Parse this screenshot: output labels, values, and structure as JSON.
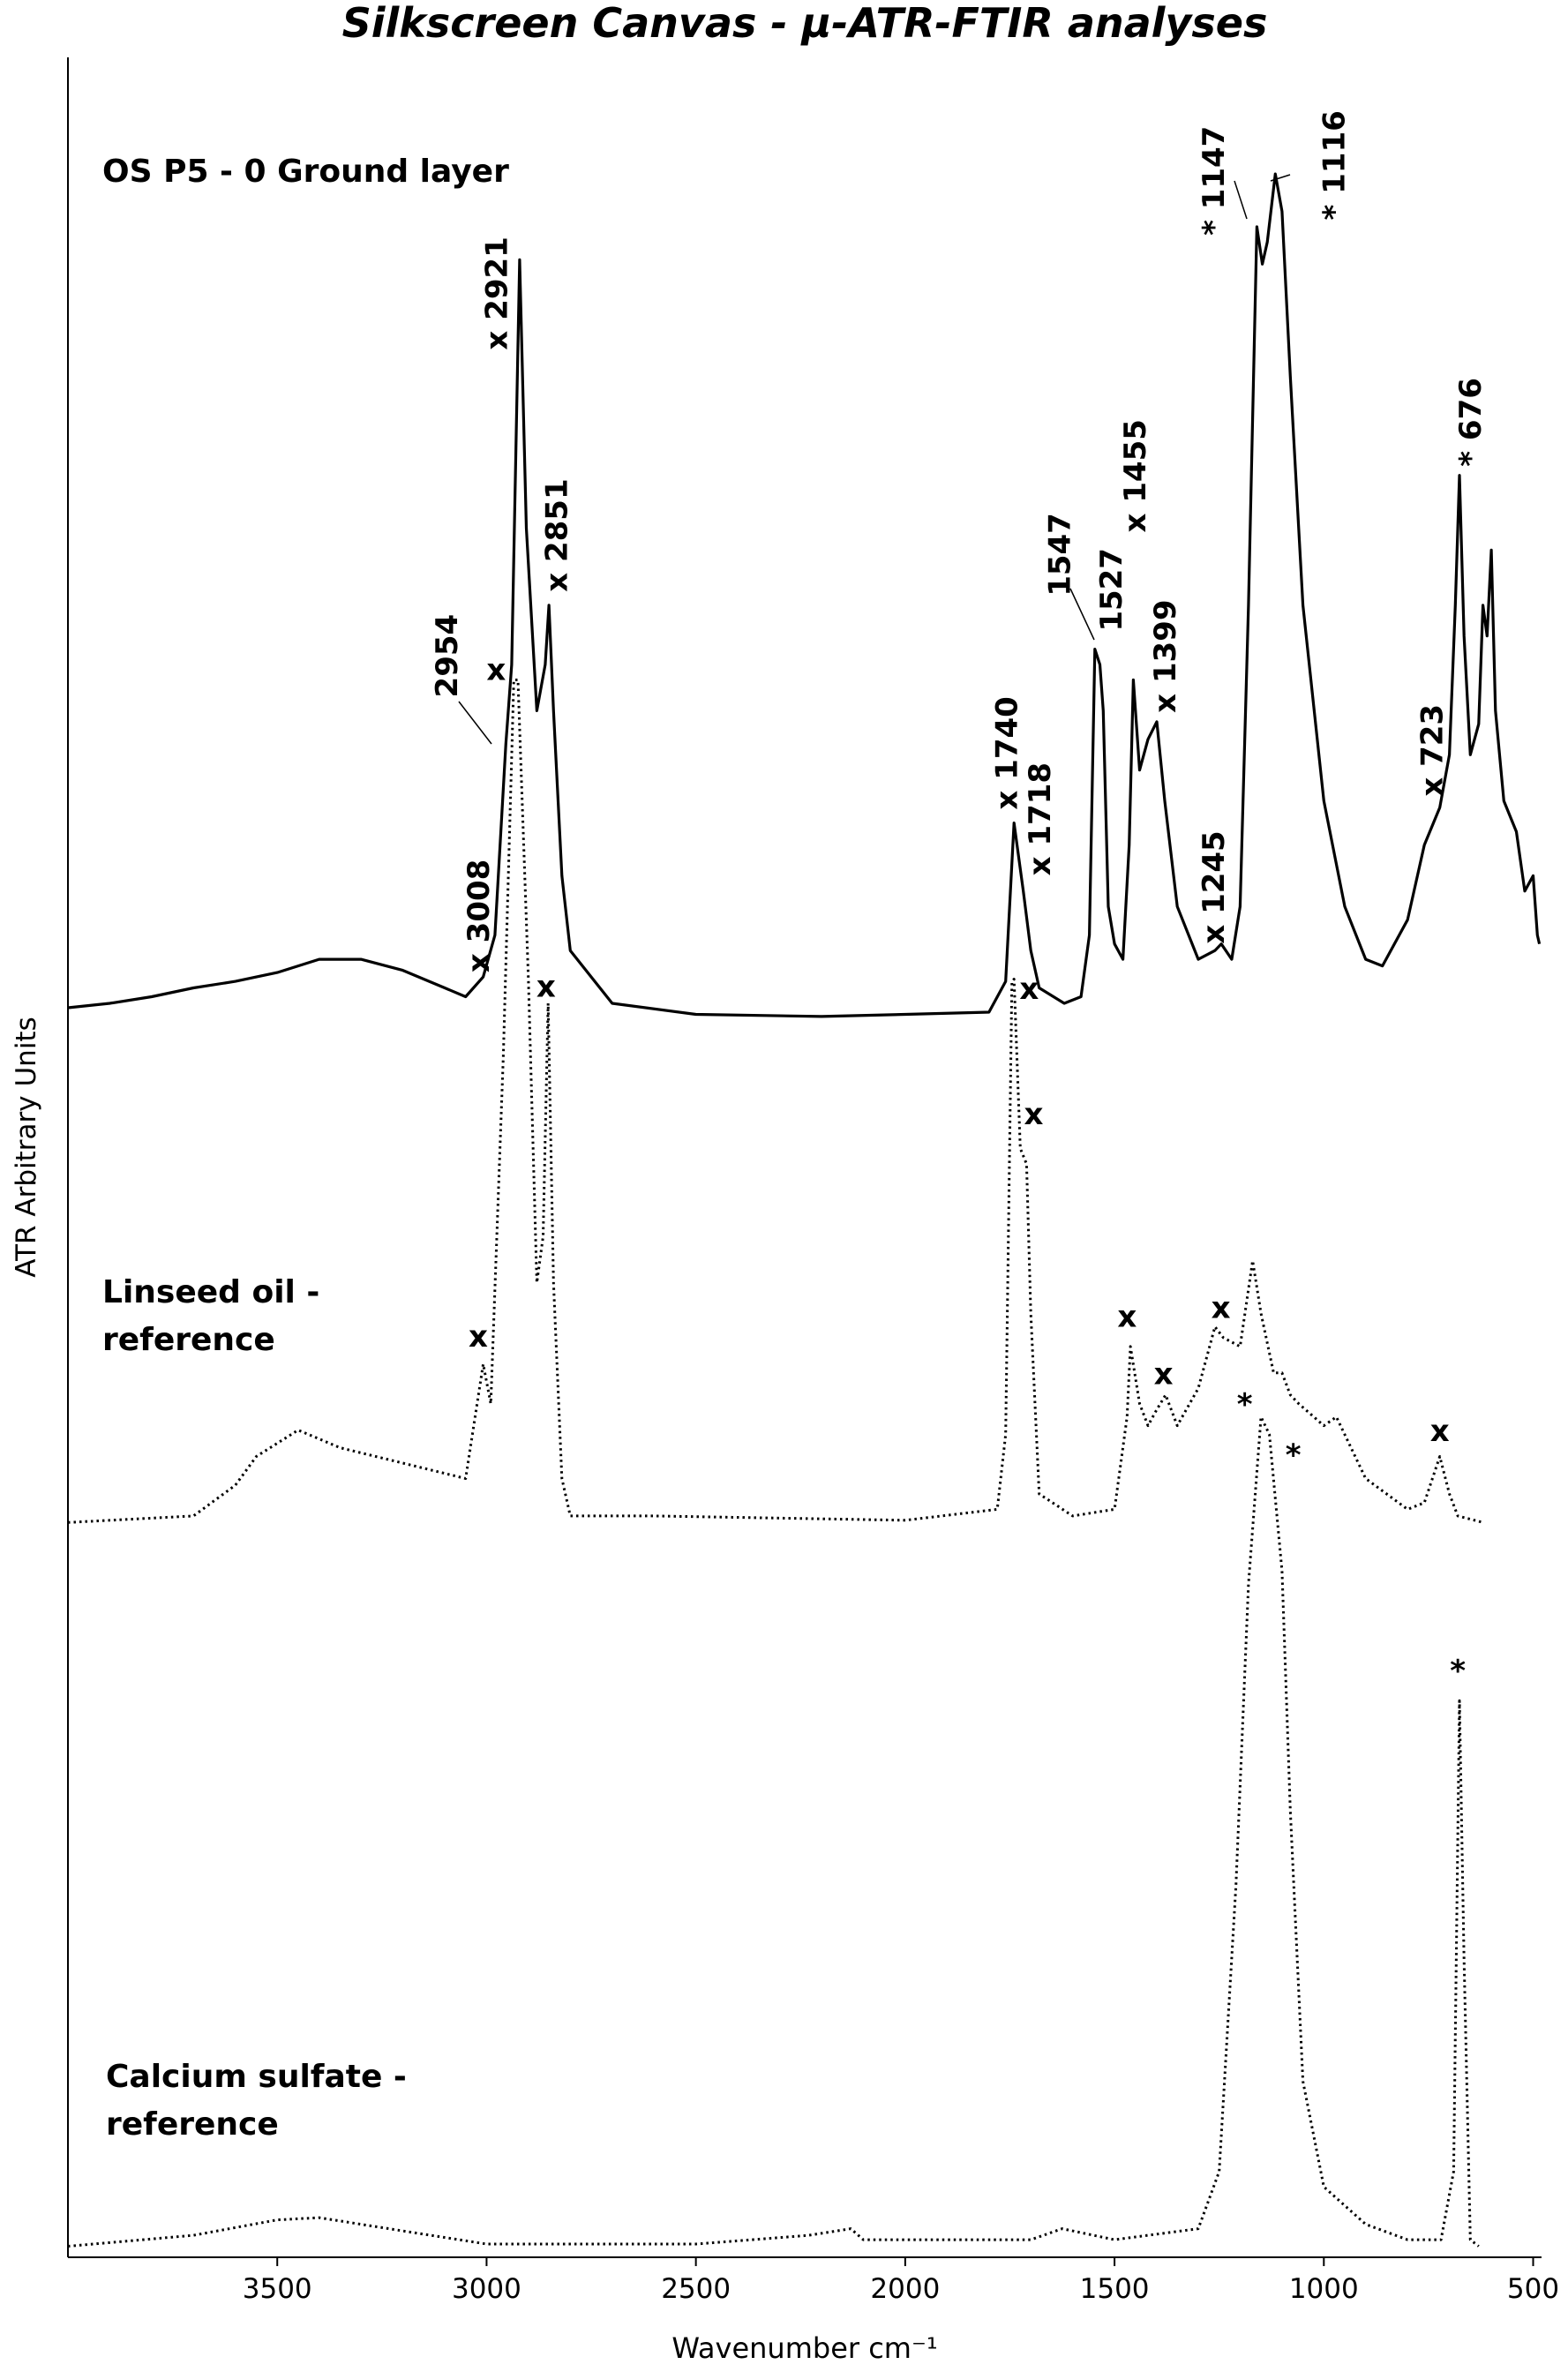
{
  "chart_data": {
    "type": "line",
    "title": "Silkscreen Canvas - μ-ATR-FTIR analyses",
    "xlabel": "Wavenumber cm⁻¹",
    "ylabel": "ATR Arbitrary Units",
    "xlim": [
      4000,
      480
    ],
    "xticks": [
      3500,
      3000,
      2500,
      2000,
      1500,
      1000,
      500
    ],
    "ylim": [
      0,
      100
    ],
    "series": [
      {
        "name": "OS P5 - 0 Ground layer",
        "color": "#000000",
        "style": "solid",
        "x": [
          4000,
          3900,
          3800,
          3700,
          3600,
          3500,
          3400,
          3300,
          3200,
          3100,
          3050,
          3008,
          2980,
          2954,
          2940,
          2921,
          2905,
          2880,
          2860,
          2851,
          2840,
          2820,
          2800,
          2700,
          2500,
          2200,
          2000,
          1800,
          1760,
          1740,
          1718,
          1700,
          1680,
          1620,
          1580,
          1560,
          1547,
          1535,
          1527,
          1515,
          1500,
          1480,
          1465,
          1455,
          1440,
          1420,
          1399,
          1380,
          1350,
          1300,
          1260,
          1245,
          1220,
          1200,
          1180,
          1160,
          1147,
          1135,
          1116,
          1100,
          1080,
          1050,
          1000,
          950,
          900,
          860,
          800,
          760,
          723,
          700,
          686,
          676,
          665,
          650,
          630,
          620,
          610,
          600,
          590,
          570,
          540,
          520,
          500,
          490,
          485
        ],
        "values": [
          56.8,
          57.0,
          57.3,
          57.7,
          58.0,
          58.4,
          59.0,
          59.0,
          58.5,
          57.7,
          57.3,
          58.2,
          60.1,
          68.8,
          72.4,
          90.8,
          78.6,
          70.3,
          72.4,
          75.1,
          70.3,
          62.8,
          59.4,
          57.0,
          56.5,
          56.4,
          56.5,
          56.6,
          58.0,
          65.2,
          62.1,
          59.4,
          57.7,
          57.0,
          57.3,
          60.1,
          73.1,
          72.4,
          70.3,
          61.4,
          59.7,
          59.0,
          64.2,
          71.7,
          67.6,
          69.0,
          69.8,
          66.2,
          61.4,
          59.0,
          59.4,
          59.7,
          59.0,
          61.4,
          75.1,
          92.3,
          90.6,
          91.6,
          94.7,
          93.0,
          85.5,
          75.1,
          66.2,
          61.4,
          59.0,
          58.7,
          60.8,
          64.2,
          65.9,
          68.3,
          75.1,
          81.0,
          73.7,
          68.3,
          69.7,
          75.1,
          73.7,
          77.6,
          70.3,
          66.2,
          64.8,
          62.1,
          62.8,
          60.1,
          59.7
        ]
      },
      {
        "name": "Linseed oil - reference",
        "color": "#000000",
        "style": "dotted",
        "x": [
          4000,
          3700,
          3600,
          3550,
          3450,
          3350,
          3200,
          3050,
          3008,
          2990,
          2960,
          2935,
          2925,
          2900,
          2880,
          2865,
          2853,
          2840,
          2820,
          2800,
          2600,
          2000,
          1780,
          1760,
          1745,
          1740,
          1725,
          1710,
          1700,
          1680,
          1600,
          1500,
          1470,
          1462,
          1440,
          1420,
          1400,
          1378,
          1350,
          1300,
          1260,
          1240,
          1200,
          1170,
          1150,
          1120,
          1100,
          1080,
          1060,
          1000,
          970,
          900,
          800,
          760,
          723,
          700,
          680,
          620
        ],
        "values": [
          33.4,
          33.7,
          35.1,
          36.4,
          37.6,
          36.8,
          36.1,
          35.4,
          40.6,
          38.8,
          54.6,
          71.7,
          71.7,
          58.0,
          44.3,
          46.4,
          57.0,
          44.3,
          35.4,
          33.7,
          33.7,
          33.5,
          34.0,
          37.4,
          58.0,
          58.1,
          50.4,
          49.7,
          42.9,
          34.7,
          33.7,
          34.0,
          38.2,
          41.4,
          38.8,
          37.8,
          38.5,
          39.2,
          37.8,
          39.5,
          42.3,
          41.8,
          41.4,
          45.3,
          42.9,
          40.2,
          40.2,
          39.2,
          38.8,
          37.8,
          38.2,
          35.4,
          34.0,
          34.3,
          36.4,
          34.7,
          33.7,
          33.4
        ]
      },
      {
        "name": "Calcium sulfate - reference",
        "color": "#000000",
        "style": "dotted",
        "x": [
          4000,
          3700,
          3500,
          3400,
          3200,
          3000,
          2500,
          2230,
          2130,
          2100,
          1700,
          1625,
          1500,
          1300,
          1250,
          1210,
          1180,
          1150,
          1130,
          1100,
          1080,
          1050,
          1000,
          900,
          800,
          720,
          690,
          676,
          665,
          650,
          630
        ],
        "values": [
          0.5,
          1.0,
          1.7,
          1.8,
          1.2,
          0.6,
          0.6,
          1.0,
          1.3,
          0.8,
          0.8,
          1.3,
          0.8,
          1.3,
          3.9,
          16.9,
          30.6,
          38.2,
          37.4,
          31.2,
          20.3,
          8.0,
          3.2,
          1.5,
          0.8,
          0.8,
          3.9,
          25.3,
          13.5,
          0.8,
          0.5
        ]
      }
    ],
    "annotations": [
      {
        "text": "x 3008",
        "x": 3020,
        "y": 58.4,
        "rotated": true
      },
      {
        "text": "2954",
        "x": 3096,
        "y": 70.9,
        "rotated": true
      },
      {
        "text": "x 2921",
        "x": 2977,
        "y": 86.7,
        "rotated": true
      },
      {
        "text": "x 2851",
        "x": 2833,
        "y": 75.7,
        "rotated": true
      },
      {
        "text": "x 1740",
        "x": 1758,
        "y": 65.8,
        "rotated": true
      },
      {
        "text": "x 1718",
        "x": 1679,
        "y": 62.8,
        "rotated": true
      },
      {
        "text": "1547",
        "x": 1632,
        "y": 75.5,
        "rotated": true
      },
      {
        "text": "1527",
        "x": 1509,
        "y": 73.9,
        "rotated": true
      },
      {
        "text": "x 1455",
        "x": 1452,
        "y": 78.4,
        "rotated": true
      },
      {
        "text": "x 1399",
        "x": 1380,
        "y": 70.2,
        "rotated": true
      },
      {
        "text": "x 1245",
        "x": 1264,
        "y": 59.7,
        "rotated": true
      },
      {
        "text": "* 1147",
        "x": 1264,
        "y": 91.9,
        "rotated": true
      },
      {
        "text": "* 1116",
        "x": 976,
        "y": 92.6,
        "rotated": true
      },
      {
        "text": "x 723",
        "x": 742,
        "y": 66.4,
        "rotated": true
      },
      {
        "text": "* 676",
        "x": 651,
        "y": 81.4,
        "rotated": true
      },
      {
        "text": "x",
        "x": 2977,
        "y": 71.7,
        "rotated": false
      },
      {
        "text": "x",
        "x": 2858,
        "y": 57.3,
        "rotated": false
      },
      {
        "text": "x",
        "x": 1704,
        "y": 57.2,
        "rotated": false
      },
      {
        "text": "x",
        "x": 1693,
        "y": 51.5,
        "rotated": false
      },
      {
        "text": "x",
        "x": 3020,
        "y": 41.4,
        "rotated": false
      },
      {
        "text": "x",
        "x": 1470,
        "y": 42.3,
        "rotated": false
      },
      {
        "text": "x",
        "x": 1383,
        "y": 39.7,
        "rotated": false
      },
      {
        "text": "x",
        "x": 1246,
        "y": 42.7,
        "rotated": false
      },
      {
        "text": "x",
        "x": 723,
        "y": 37.1,
        "rotated": false
      },
      {
        "text": "*",
        "x": 1189,
        "y": 38.3,
        "rotated": false
      },
      {
        "text": "*",
        "x": 1073,
        "y": 36.0,
        "rotated": false
      },
      {
        "text": "*",
        "x": 680,
        "y": 26.2,
        "rotated": false
      }
    ]
  }
}
